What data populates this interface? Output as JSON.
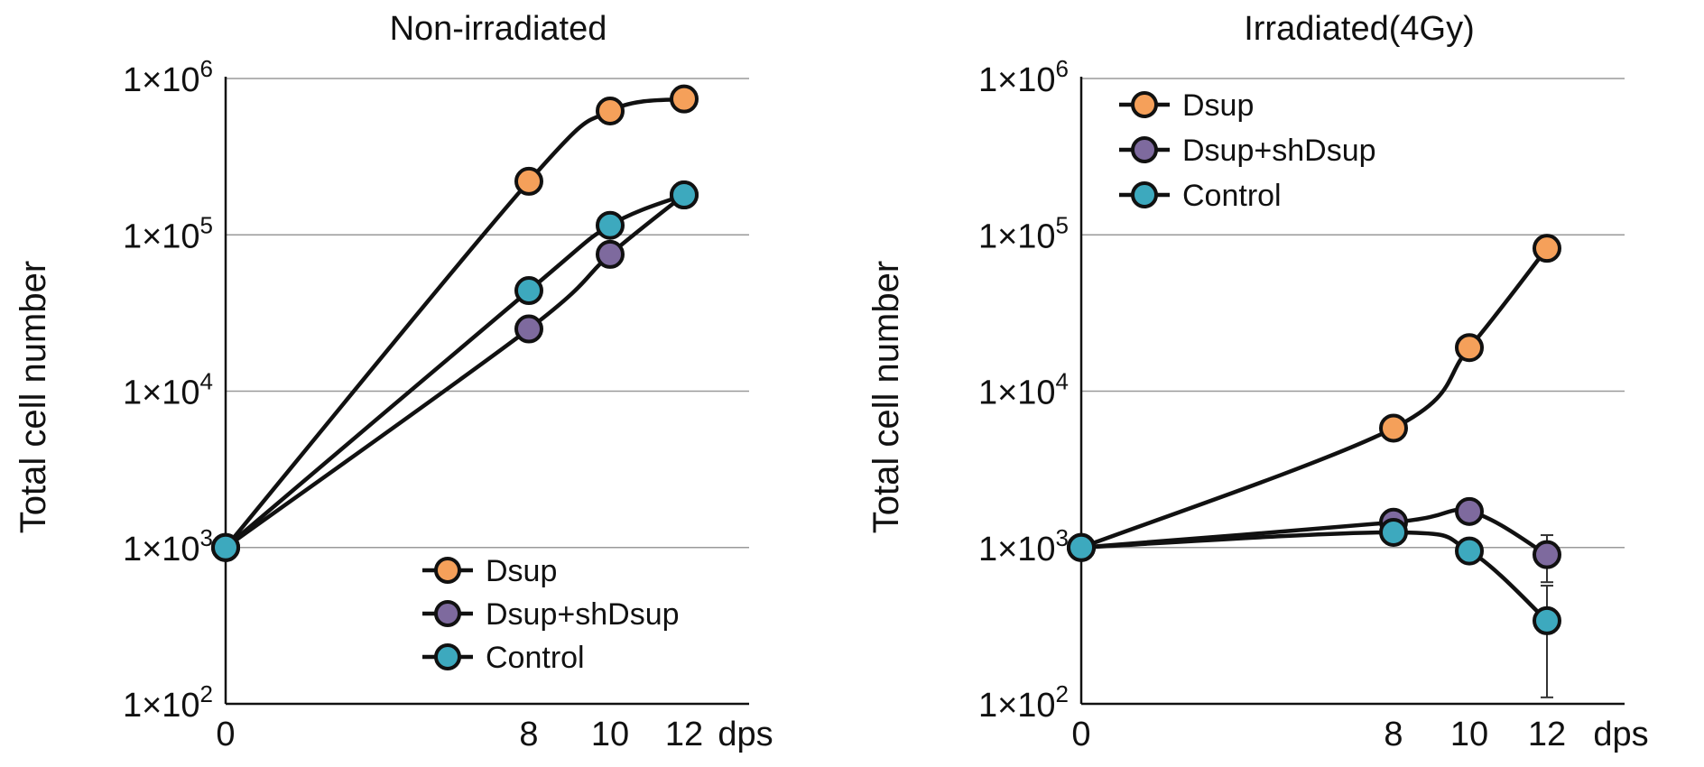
{
  "chart_data": [
    {
      "type": "line",
      "title": "Non-irradiated",
      "xlabel": "dps",
      "ylabel": "Total cell number",
      "yscale": "log",
      "ylim": [
        100,
        1000000
      ],
      "x_ticks": [
        "0",
        "8",
        "10",
        "12"
      ],
      "y_ticks": [
        {
          "base": "1×10",
          "exp": "2"
        },
        {
          "base": "1×10",
          "exp": "3"
        },
        {
          "base": "1×10",
          "exp": "4"
        },
        {
          "base": "1×10",
          "exp": "5"
        },
        {
          "base": "1×10",
          "exp": "6"
        }
      ],
      "grid": true,
      "legend_position": "bottom-right",
      "series": [
        {
          "name": "Dsup",
          "color": "#F5A05A",
          "x": [
            0,
            8,
            10,
            12
          ],
          "y": [
            1000,
            220000,
            620000,
            740000
          ]
        },
        {
          "name": "Dsup+shDsup",
          "color": "#7E6A9E",
          "x": [
            0,
            8,
            10,
            12
          ],
          "y": [
            1000,
            25000,
            75000,
            180000
          ]
        },
        {
          "name": "Control",
          "color": "#3DA9BE",
          "x": [
            0,
            8,
            10,
            12
          ],
          "y": [
            1000,
            44000,
            115000,
            180000
          ]
        }
      ]
    },
    {
      "type": "line",
      "title": "Irradiated(4Gy)",
      "xlabel": "dps",
      "ylabel": "Total cell number",
      "yscale": "log",
      "ylim": [
        100,
        1000000
      ],
      "x_ticks": [
        "0",
        "8",
        "10",
        "12"
      ],
      "y_ticks": [
        {
          "base": "1×10",
          "exp": "2"
        },
        {
          "base": "1×10",
          "exp": "3"
        },
        {
          "base": "1×10",
          "exp": "4"
        },
        {
          "base": "1×10",
          "exp": "5"
        },
        {
          "base": "1×10",
          "exp": "6"
        }
      ],
      "grid": true,
      "legend_position": "top-left",
      "series": [
        {
          "name": "Dsup",
          "color": "#F5A05A",
          "x": [
            0,
            8,
            10,
            12
          ],
          "y": [
            1000,
            5800,
            19000,
            82000
          ]
        },
        {
          "name": "Dsup+shDsup",
          "color": "#7E6A9E",
          "x": [
            0,
            8,
            10,
            12
          ],
          "y": [
            1000,
            1450,
            1700,
            900
          ],
          "err_y": [
            0,
            0,
            0,
            300
          ]
        },
        {
          "name": "Control",
          "color": "#3DA9BE",
          "x": [
            0,
            8,
            10,
            12
          ],
          "y": [
            1000,
            1250,
            950,
            340
          ],
          "err_y": [
            0,
            0,
            0,
            230
          ]
        }
      ]
    }
  ]
}
